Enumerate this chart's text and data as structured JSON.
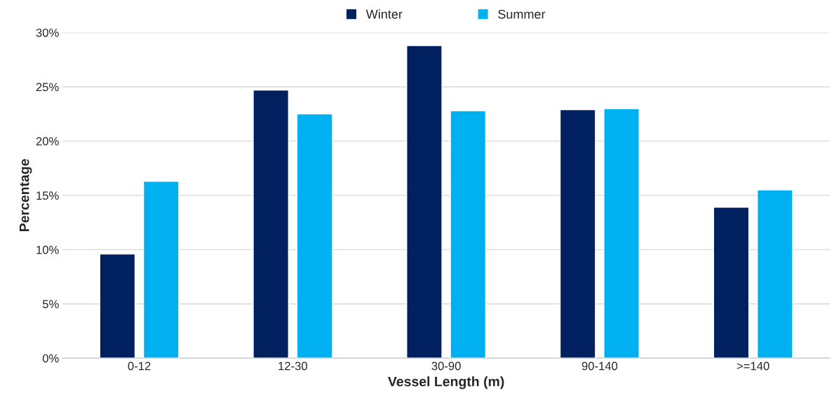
{
  "chart_data": {
    "type": "bar",
    "xlabel": "Vessel Length (m)",
    "ylabel": "Percentage",
    "categories": [
      "0-12",
      "12-30",
      "30-90",
      "90-140",
      ">=140"
    ],
    "series": [
      {
        "name": "Winter",
        "color": "#002060",
        "values": [
          9.6,
          24.7,
          28.8,
          22.9,
          13.9
        ]
      },
      {
        "name": "Summer",
        "color": "#00b0f0",
        "values": [
          16.3,
          22.5,
          22.8,
          23.0,
          15.5
        ]
      }
    ],
    "ylim": [
      0,
      30
    ],
    "yticks": [
      {
        "value": 0,
        "label": "0%"
      },
      {
        "value": 5,
        "label": "5%"
      },
      {
        "value": 10,
        "label": "10%"
      },
      {
        "value": 15,
        "label": "15%"
      },
      {
        "value": 20,
        "label": "20%"
      },
      {
        "value": 25,
        "label": "25%"
      },
      {
        "value": 30,
        "label": "30%"
      }
    ],
    "grid": "y",
    "legend": "top"
  }
}
